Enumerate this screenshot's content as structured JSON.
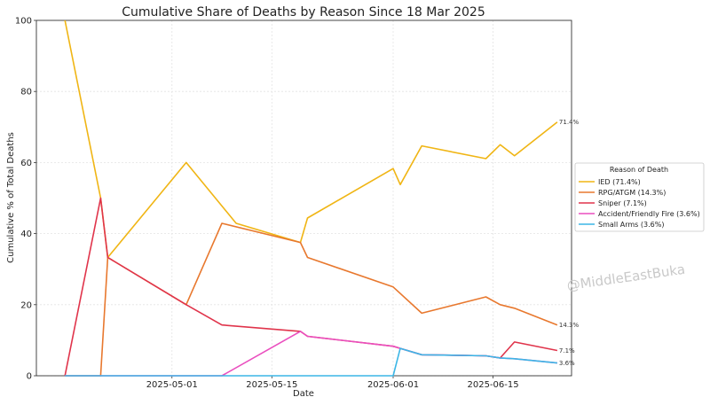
{
  "chart_data": {
    "type": "line",
    "title": "Cumulative Share of Deaths by Reason Since 18 Mar 2025",
    "xlabel": "Date",
    "ylabel": "Cumulative % of Total Deaths",
    "xlim": [
      "2025-04-12",
      "2025-06-26"
    ],
    "ylim": [
      0,
      100
    ],
    "x_ticks": [
      "2025-05-01",
      "2025-05-15",
      "2025-06-01",
      "2025-06-15"
    ],
    "y_ticks": [
      0,
      20,
      40,
      60,
      80,
      100
    ],
    "grid": true,
    "legend": {
      "title": "Reason of Death",
      "placement": "right, outside"
    },
    "watermark": "@MiddleEastBuka",
    "series": [
      {
        "name": "IED (71.4%)",
        "color": "#f0b514",
        "end_label": "71.4%",
        "points": [
          [
            "2025-04-16",
            100
          ],
          [
            "2025-04-21",
            50
          ],
          [
            "2025-04-22",
            33.3
          ],
          [
            "2025-05-03",
            60
          ],
          [
            "2025-05-10",
            42.9
          ],
          [
            "2025-05-19",
            37.5
          ],
          [
            "2025-05-20",
            44.4
          ],
          [
            "2025-06-01",
            58.3
          ],
          [
            "2025-06-02",
            53.8
          ],
          [
            "2025-06-05",
            64.7
          ],
          [
            "2025-06-14",
            61.1
          ],
          [
            "2025-06-16",
            65
          ],
          [
            "2025-06-18",
            61.9
          ],
          [
            "2025-06-24",
            71.4
          ]
        ]
      },
      {
        "name": "RPG/ATGM (14.3%)",
        "color": "#e8782e",
        "end_label": "14.3%",
        "points": [
          [
            "2025-04-16",
            0
          ],
          [
            "2025-04-21",
            0
          ],
          [
            "2025-04-22",
            33.3
          ],
          [
            "2025-05-03",
            20
          ],
          [
            "2025-05-08",
            42.9
          ],
          [
            "2025-05-19",
            37.5
          ],
          [
            "2025-05-20",
            33.3
          ],
          [
            "2025-06-01",
            25
          ],
          [
            "2025-06-05",
            17.6
          ],
          [
            "2025-06-14",
            22.2
          ],
          [
            "2025-06-16",
            20
          ],
          [
            "2025-06-18",
            19
          ],
          [
            "2025-06-24",
            14.3
          ]
        ]
      },
      {
        "name": "Sniper (7.1%)",
        "color": "#e0344b",
        "end_label": "7.1%",
        "points": [
          [
            "2025-04-16",
            0
          ],
          [
            "2025-04-21",
            50
          ],
          [
            "2025-04-22",
            33.3
          ],
          [
            "2025-05-03",
            20
          ],
          [
            "2025-05-08",
            14.3
          ],
          [
            "2025-05-19",
            12.5
          ],
          [
            "2025-05-20",
            11.1
          ],
          [
            "2025-06-01",
            8.3
          ],
          [
            "2025-06-02",
            7.7
          ],
          [
            "2025-06-05",
            5.9
          ],
          [
            "2025-06-14",
            5.6
          ],
          [
            "2025-06-16",
            5
          ],
          [
            "2025-06-18",
            9.5
          ],
          [
            "2025-06-24",
            7.1
          ]
        ]
      },
      {
        "name": "Accident/Friendly Fire (3.6%)",
        "color": "#ea4fbf",
        "end_label": "",
        "points": [
          [
            "2025-04-16",
            0
          ],
          [
            "2025-05-08",
            0
          ],
          [
            "2025-05-19",
            12.5
          ],
          [
            "2025-05-20",
            11.1
          ],
          [
            "2025-06-01",
            8.3
          ],
          [
            "2025-06-02",
            7.7
          ],
          [
            "2025-06-05",
            5.9
          ],
          [
            "2025-06-14",
            5.6
          ],
          [
            "2025-06-16",
            5
          ],
          [
            "2025-06-18",
            4.8
          ],
          [
            "2025-06-24",
            3.6
          ]
        ]
      },
      {
        "name": "Small Arms (3.6%)",
        "color": "#3cb6e6",
        "end_label": "3.6%",
        "points": [
          [
            "2025-04-16",
            0
          ],
          [
            "2025-06-01",
            0
          ],
          [
            "2025-06-02",
            7.7
          ],
          [
            "2025-06-05",
            5.9
          ],
          [
            "2025-06-14",
            5.6
          ],
          [
            "2025-06-16",
            5
          ],
          [
            "2025-06-18",
            4.8
          ],
          [
            "2025-06-24",
            3.6
          ]
        ]
      }
    ]
  }
}
